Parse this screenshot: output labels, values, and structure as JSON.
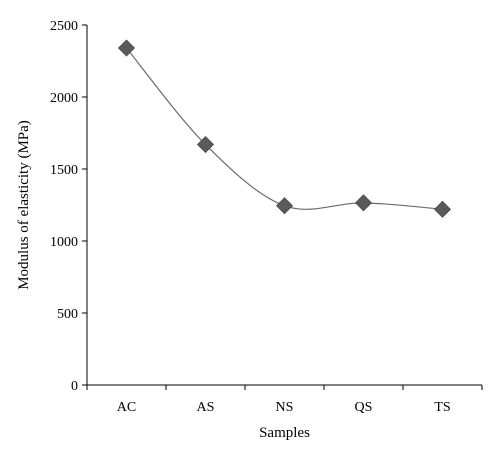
{
  "chart_data": {
    "type": "line",
    "categories": [
      "AC",
      "AS",
      "NS",
      "QS",
      "TS"
    ],
    "series": [
      {
        "values": [
          2340,
          1670,
          1245,
          1265,
          1220
        ]
      }
    ],
    "xlabel": "Samples",
    "ylabel": "Modulus of elasticity (MPa)",
    "ylim": [
      0,
      2500
    ],
    "yticks": [
      0,
      500,
      1000,
      1500,
      2000,
      2500
    ],
    "grid": false,
    "line_style": "smooth",
    "marker": "diamond",
    "colors": {
      "line": "#6b6b6b",
      "marker": "#5a5a5a",
      "axis": "#000000"
    }
  }
}
